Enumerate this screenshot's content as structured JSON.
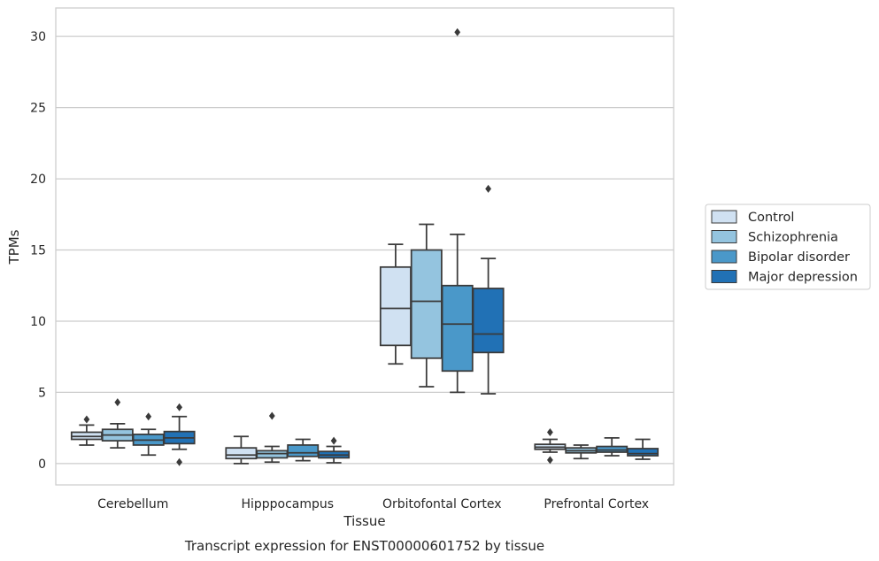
{
  "chart_data": {
    "type": "box",
    "title": "",
    "caption": "Transcript expression for ENST00000601752 by tissue",
    "xlabel": "Tissue",
    "ylabel": "TPMs",
    "ylim": [
      -1.5,
      32
    ],
    "yticks": [
      0,
      5,
      10,
      15,
      20,
      25,
      30
    ],
    "grid": true,
    "legend_position": "right",
    "categories": [
      "Cerebellum",
      "Hipppocampus",
      "Orbitofontal Cortex",
      "Prefrontal Cortex"
    ],
    "series": [
      {
        "name": "Control",
        "color": "#d0e1f2",
        "boxes": [
          {
            "whislo": 1.3,
            "q1": 1.7,
            "med": 1.9,
            "q3": 2.2,
            "whishi": 2.7,
            "fliers": [
              3.1
            ]
          },
          {
            "whislo": 0.0,
            "q1": 0.35,
            "med": 0.6,
            "q3": 1.1,
            "whishi": 1.9,
            "fliers": []
          },
          {
            "whislo": 7.0,
            "q1": 8.3,
            "med": 10.9,
            "q3": 13.8,
            "whishi": 15.4,
            "fliers": []
          },
          {
            "whislo": 0.8,
            "q1": 1.0,
            "med": 1.15,
            "q3": 1.35,
            "whishi": 1.7,
            "fliers": [
              2.2,
              0.25
            ]
          }
        ]
      },
      {
        "name": "Schizophrenia",
        "color": "#94c4df",
        "boxes": [
          {
            "whislo": 1.1,
            "q1": 1.6,
            "med": 2.0,
            "q3": 2.4,
            "whishi": 2.8,
            "fliers": [
              4.3
            ]
          },
          {
            "whislo": 0.1,
            "q1": 0.4,
            "med": 0.7,
            "q3": 0.9,
            "whishi": 1.2,
            "fliers": [
              3.35
            ]
          },
          {
            "whislo": 5.4,
            "q1": 7.4,
            "med": 11.4,
            "q3": 15.0,
            "whishi": 16.8,
            "fliers": []
          },
          {
            "whislo": 0.35,
            "q1": 0.75,
            "med": 0.9,
            "q3": 1.1,
            "whishi": 1.3,
            "fliers": []
          }
        ]
      },
      {
        "name": "Bipolar disorder",
        "color": "#4a98c9",
        "boxes": [
          {
            "whislo": 0.6,
            "q1": 1.3,
            "med": 1.65,
            "q3": 2.05,
            "whishi": 2.4,
            "fliers": [
              3.3
            ]
          },
          {
            "whislo": 0.2,
            "q1": 0.5,
            "med": 0.75,
            "q3": 1.3,
            "whishi": 1.7,
            "fliers": []
          },
          {
            "whislo": 5.0,
            "q1": 6.5,
            "med": 9.8,
            "q3": 12.5,
            "whishi": 16.1,
            "fliers": [
              30.3
            ]
          },
          {
            "whislo": 0.55,
            "q1": 0.8,
            "med": 0.95,
            "q3": 1.2,
            "whishi": 1.8,
            "fliers": []
          }
        ]
      },
      {
        "name": "Major depression",
        "color": "#2171b5",
        "boxes": [
          {
            "whislo": 1.0,
            "q1": 1.4,
            "med": 1.8,
            "q3": 2.25,
            "whishi": 3.3,
            "fliers": [
              3.95,
              0.1
            ]
          },
          {
            "whislo": 0.05,
            "q1": 0.4,
            "med": 0.6,
            "q3": 0.85,
            "whishi": 1.2,
            "fliers": [
              1.6
            ]
          },
          {
            "whislo": 4.9,
            "q1": 7.8,
            "med": 9.1,
            "q3": 12.3,
            "whishi": 14.4,
            "fliers": [
              19.3
            ]
          },
          {
            "whislo": 0.3,
            "q1": 0.55,
            "med": 0.7,
            "q3": 1.05,
            "whishi": 1.7,
            "fliers": []
          }
        ]
      }
    ]
  }
}
